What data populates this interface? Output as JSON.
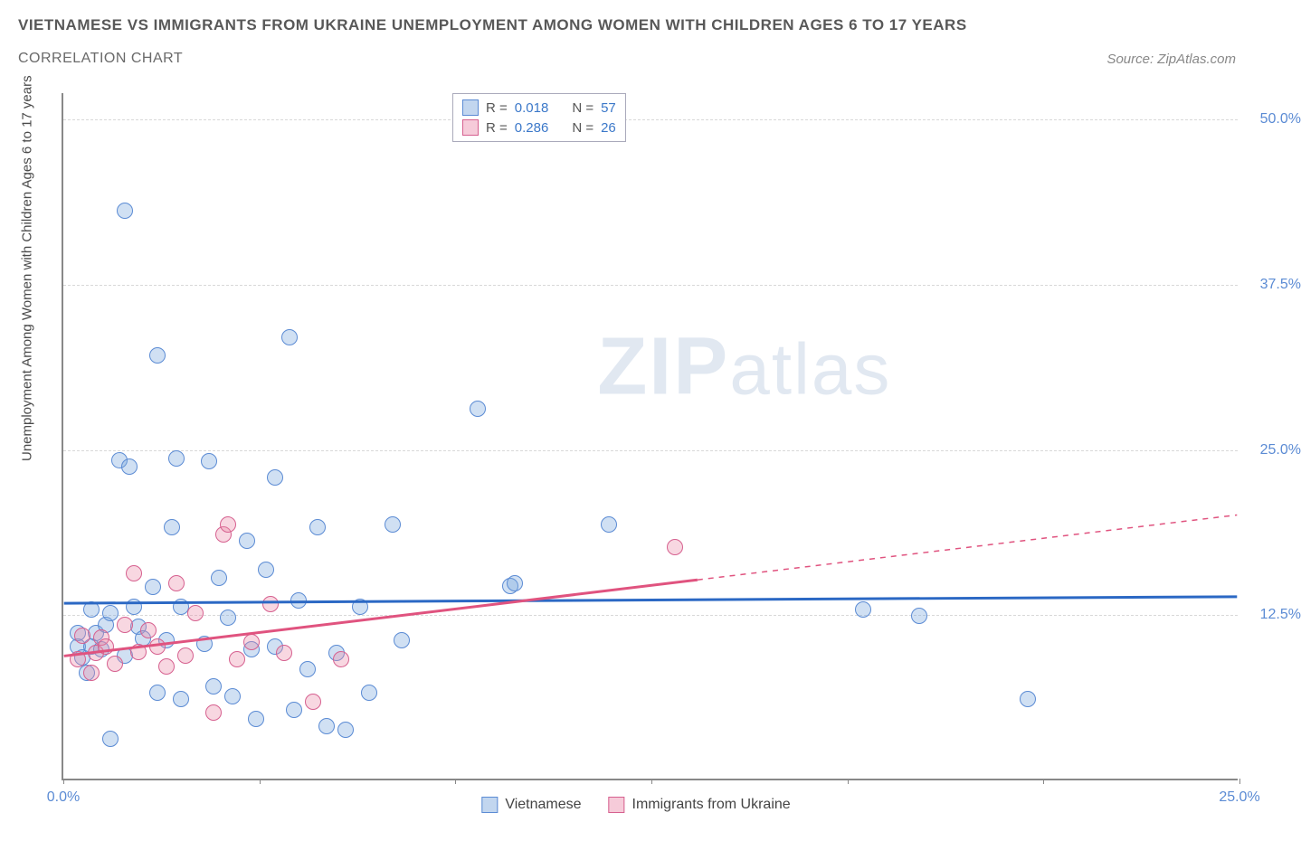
{
  "title": "VIETNAMESE VS IMMIGRANTS FROM UKRAINE UNEMPLOYMENT AMONG WOMEN WITH CHILDREN AGES 6 TO 17 YEARS",
  "subtitle": "CORRELATION CHART",
  "source": "Source: ZipAtlas.com",
  "ylabel": "Unemployment Among Women with Children Ages 6 to 17 years",
  "watermark_a": "ZIP",
  "watermark_b": "atlas",
  "chart": {
    "type": "scatter",
    "background_color": "#ffffff",
    "grid_color": "#d8d8d8",
    "axis_color": "#888888",
    "xlim": [
      0,
      25
    ],
    "ylim": [
      0,
      52
    ],
    "xticks": [
      0,
      4.17,
      8.33,
      12.5,
      16.67,
      20.83,
      25
    ],
    "xtick_labels": {
      "0": "0.0%",
      "25": "25.0%"
    },
    "yticks": [
      12.5,
      25.0,
      37.5,
      50.0
    ],
    "ytick_labels": [
      "12.5%",
      "25.0%",
      "37.5%",
      "50.0%"
    ],
    "marker_radius": 9,
    "marker_opacity": 0.35,
    "marker_border_width": 1.5,
    "series": [
      {
        "name": "Vietnamese",
        "color_fill": "rgba(120,165,220,0.35)",
        "color_border": "#5b8bd4",
        "R": "0.018",
        "N": "57",
        "trend": {
          "y_at_x0": 13.3,
          "y_at_x25": 13.8,
          "solid_until_x": 25,
          "line_color": "#2b68c4",
          "line_width": 3
        },
        "points": [
          [
            0.3,
            10.0
          ],
          [
            0.3,
            11.0
          ],
          [
            0.4,
            9.2
          ],
          [
            0.5,
            8.0
          ],
          [
            0.6,
            12.8
          ],
          [
            0.6,
            10.0
          ],
          [
            0.7,
            11.0
          ],
          [
            0.8,
            9.8
          ],
          [
            0.9,
            11.6
          ],
          [
            1.0,
            12.5
          ],
          [
            1.0,
            3.0
          ],
          [
            1.2,
            24.1
          ],
          [
            1.3,
            9.3
          ],
          [
            1.3,
            43.0
          ],
          [
            1.4,
            23.6
          ],
          [
            1.5,
            13.0
          ],
          [
            1.6,
            11.5
          ],
          [
            1.7,
            10.6
          ],
          [
            1.9,
            14.5
          ],
          [
            2.0,
            32.0
          ],
          [
            2.0,
            6.5
          ],
          [
            2.2,
            10.5
          ],
          [
            2.3,
            19.0
          ],
          [
            2.4,
            24.2
          ],
          [
            2.5,
            13.0
          ],
          [
            2.5,
            6.0
          ],
          [
            3.0,
            10.2
          ],
          [
            3.1,
            24.0
          ],
          [
            3.2,
            7.0
          ],
          [
            3.3,
            15.2
          ],
          [
            3.5,
            12.2
          ],
          [
            3.6,
            6.2
          ],
          [
            3.9,
            18.0
          ],
          [
            4.0,
            9.8
          ],
          [
            4.1,
            4.5
          ],
          [
            4.3,
            15.8
          ],
          [
            4.5,
            10.0
          ],
          [
            4.5,
            22.8
          ],
          [
            4.8,
            33.4
          ],
          [
            4.9,
            5.2
          ],
          [
            5.0,
            13.5
          ],
          [
            5.2,
            8.3
          ],
          [
            5.4,
            19.0
          ],
          [
            5.6,
            4.0
          ],
          [
            5.8,
            9.5
          ],
          [
            6.0,
            3.7
          ],
          [
            6.3,
            13.0
          ],
          [
            6.5,
            6.5
          ],
          [
            7.0,
            19.2
          ],
          [
            7.2,
            10.5
          ],
          [
            8.8,
            28.0
          ],
          [
            9.5,
            14.6
          ],
          [
            9.6,
            14.8
          ],
          [
            11.6,
            19.2
          ],
          [
            17.0,
            12.8
          ],
          [
            18.2,
            12.3
          ],
          [
            20.5,
            6.0
          ]
        ]
      },
      {
        "name": "Immigrants from Ukraine",
        "color_fill": "rgba(235,140,170,0.35)",
        "color_border": "#d6608f",
        "R": "0.286",
        "N": "26",
        "trend": {
          "y_at_x0": 9.3,
          "y_at_x25": 20.0,
          "solid_until_x": 13.5,
          "line_color": "#e0537f",
          "line_width": 3
        },
        "points": [
          [
            0.3,
            9.0
          ],
          [
            0.4,
            10.8
          ],
          [
            0.6,
            8.0
          ],
          [
            0.7,
            9.5
          ],
          [
            0.8,
            10.7
          ],
          [
            0.9,
            10.0
          ],
          [
            1.1,
            8.7
          ],
          [
            1.3,
            11.6
          ],
          [
            1.5,
            15.5
          ],
          [
            1.6,
            9.6
          ],
          [
            1.8,
            11.2
          ],
          [
            2.0,
            10.0
          ],
          [
            2.2,
            8.5
          ],
          [
            2.4,
            14.8
          ],
          [
            2.6,
            9.3
          ],
          [
            2.8,
            12.5
          ],
          [
            3.2,
            5.0
          ],
          [
            3.4,
            18.5
          ],
          [
            3.5,
            19.2
          ],
          [
            3.7,
            9.0
          ],
          [
            4.0,
            10.3
          ],
          [
            4.4,
            13.2
          ],
          [
            4.7,
            9.5
          ],
          [
            5.3,
            5.8
          ],
          [
            5.9,
            9.0
          ],
          [
            13.0,
            17.5
          ]
        ]
      }
    ]
  },
  "colors": {
    "title_text": "#585858",
    "tick_text": "#5b8bd4",
    "source_text": "#888888"
  }
}
